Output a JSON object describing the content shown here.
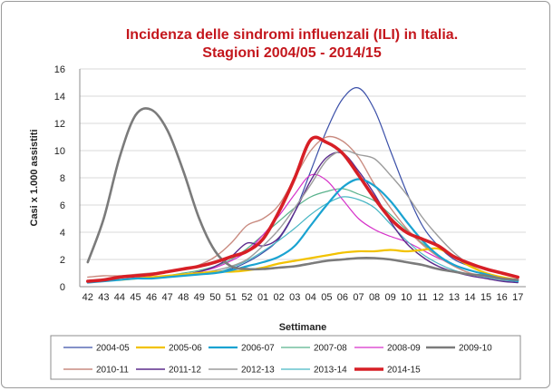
{
  "chart_data": {
    "type": "line",
    "title": "Incidenza delle sindromi influenzali (ILI) in Italia.",
    "subtitle": "Stagioni 2004/05 - 2014/15",
    "xlabel": "Settimane",
    "ylabel": "Casi x 1.000 assistiti",
    "ylim": [
      0,
      16
    ],
    "yticks": [
      "0",
      "2",
      "4",
      "6",
      "8",
      "10",
      "12",
      "14",
      "16"
    ],
    "categories": [
      "42",
      "43",
      "44",
      "45",
      "46",
      "47",
      "48",
      "49",
      "50",
      "51",
      "52",
      "01",
      "02",
      "03",
      "04",
      "05",
      "06",
      "07",
      "08",
      "09",
      "10",
      "11",
      "12",
      "13",
      "14",
      "15",
      "16",
      "17"
    ],
    "grid": true,
    "legend_position": "bottom",
    "series": [
      {
        "name": "2004-05",
        "color": "#3a4fa8",
        "width": 1.2,
        "values": [
          0.3,
          0.4,
          0.5,
          0.6,
          0.7,
          0.8,
          0.9,
          1.0,
          1.1,
          1.3,
          1.8,
          2.5,
          3.5,
          5.5,
          8.5,
          11.5,
          13.8,
          14.6,
          13.0,
          10.0,
          7.0,
          4.5,
          3.0,
          2.0,
          1.5,
          1.0,
          0.7,
          0.5
        ]
      },
      {
        "name": "2005-06",
        "color": "#f2c200",
        "width": 2.2,
        "values": [
          0.4,
          0.5,
          0.5,
          0.6,
          0.7,
          0.8,
          0.9,
          1.0,
          1.1,
          1.1,
          1.2,
          1.4,
          1.7,
          1.9,
          2.1,
          2.3,
          2.5,
          2.6,
          2.6,
          2.7,
          2.6,
          2.7,
          2.8,
          2.2,
          1.5,
          1.0,
          0.7,
          0.5
        ]
      },
      {
        "name": "2006-07",
        "color": "#1aa3d1",
        "width": 2.2,
        "values": [
          0.3,
          0.4,
          0.5,
          0.6,
          0.6,
          0.7,
          0.8,
          0.9,
          1.0,
          1.2,
          1.5,
          1.8,
          2.2,
          3.0,
          4.5,
          6.0,
          7.3,
          7.9,
          7.4,
          6.3,
          4.8,
          3.4,
          2.3,
          1.6,
          1.2,
          0.9,
          0.6,
          0.4
        ]
      },
      {
        "name": "2007-08",
        "color": "#59b28c",
        "width": 1.2,
        "values": [
          0.4,
          0.5,
          0.5,
          0.6,
          0.7,
          0.8,
          1.0,
          1.2,
          1.5,
          2.0,
          2.8,
          3.8,
          4.8,
          5.8,
          6.6,
          7.0,
          7.2,
          6.8,
          6.3,
          5.3,
          4.2,
          3.2,
          2.3,
          1.6,
          1.2,
          0.9,
          0.6,
          0.4
        ]
      },
      {
        "name": "2008-09",
        "color": "#d631c9",
        "width": 1.2,
        "values": [
          0.3,
          0.4,
          0.5,
          0.6,
          0.7,
          0.8,
          0.9,
          1.1,
          1.4,
          1.9,
          2.6,
          3.8,
          5.2,
          6.8,
          8.2,
          7.8,
          6.4,
          5.0,
          4.2,
          3.7,
          3.3,
          2.7,
          2.1,
          1.6,
          1.2,
          0.9,
          0.6,
          0.4
        ]
      },
      {
        "name": "2009-10",
        "color": "#7b7b7b",
        "width": 2.6,
        "values": [
          1.8,
          5.0,
          9.5,
          12.6,
          13.0,
          11.5,
          8.5,
          5.0,
          2.6,
          1.5,
          1.3,
          1.3,
          1.4,
          1.5,
          1.7,
          1.9,
          2.0,
          2.1,
          2.1,
          2.0,
          1.8,
          1.6,
          1.3,
          1.1,
          0.9,
          0.8,
          0.6,
          0.5
        ]
      },
      {
        "name": "2010-11",
        "color": "#c98b80",
        "width": 1.4,
        "values": [
          0.7,
          0.8,
          0.8,
          0.9,
          1.0,
          1.1,
          1.3,
          1.6,
          2.2,
          3.2,
          4.5,
          5.0,
          6.0,
          8.0,
          10.0,
          11.0,
          10.7,
          9.5,
          7.5,
          5.8,
          4.3,
          3.1,
          2.2,
          1.5,
          1.0,
          0.8,
          0.6,
          0.5
        ]
      },
      {
        "name": "2011-12",
        "color": "#5b2b8c",
        "width": 1.4,
        "values": [
          0.3,
          0.4,
          0.5,
          0.6,
          0.7,
          0.8,
          0.9,
          1.1,
          1.5,
          2.2,
          3.2,
          3.0,
          3.6,
          5.5,
          7.8,
          9.5,
          9.8,
          8.5,
          6.8,
          4.8,
          3.2,
          2.2,
          1.5,
          1.1,
          0.8,
          0.6,
          0.4,
          0.3
        ]
      },
      {
        "name": "2012-13",
        "color": "#9c9c9c",
        "width": 1.4,
        "values": [
          0.3,
          0.4,
          0.5,
          0.6,
          0.7,
          0.8,
          0.9,
          1.0,
          1.2,
          1.5,
          2.0,
          3.0,
          4.2,
          5.8,
          7.5,
          9.3,
          10.0,
          9.7,
          9.4,
          8.2,
          6.8,
          5.1,
          3.7,
          2.5,
          1.6,
          1.0,
          0.7,
          0.5
        ]
      },
      {
        "name": "2013-14",
        "color": "#48b6c4",
        "width": 1.2,
        "values": [
          0.4,
          0.5,
          0.5,
          0.6,
          0.7,
          0.7,
          0.8,
          0.9,
          1.0,
          1.4,
          1.9,
          2.6,
          3.4,
          4.3,
          5.3,
          6.1,
          6.6,
          6.4,
          5.8,
          4.6,
          3.4,
          2.4,
          1.7,
          1.2,
          0.9,
          0.7,
          0.5,
          0.4
        ]
      },
      {
        "name": "2014-15",
        "color": "#d71f26",
        "width": 3.6,
        "values": [
          0.4,
          0.5,
          0.7,
          0.8,
          0.9,
          1.1,
          1.3,
          1.5,
          1.8,
          2.2,
          2.6,
          3.5,
          5.5,
          8.0,
          10.8,
          10.6,
          9.8,
          8.2,
          6.5,
          5.0,
          4.0,
          3.5,
          3.0,
          2.2,
          1.7,
          1.3,
          1.0,
          0.7
        ]
      }
    ]
  }
}
